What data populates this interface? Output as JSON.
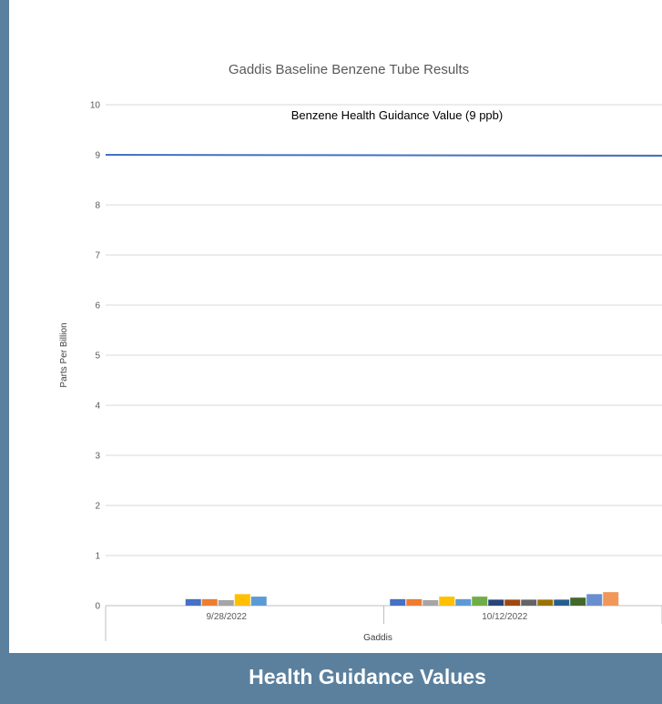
{
  "chart_data": {
    "type": "bar",
    "title": "Gaddis Baseline Benzene Tube Results",
    "xlabel": "Gaddis",
    "ylabel": "Parts Per Billion",
    "ylim": [
      0,
      10
    ],
    "yticks": [
      0,
      1,
      2,
      3,
      4,
      5,
      6,
      7,
      8,
      9,
      10
    ],
    "grid": true,
    "legend": "none",
    "groups": [
      {
        "label": "9/28/2022",
        "values": [
          0.13,
          0.13,
          0.11,
          0.23,
          0.18
        ],
        "colors": [
          "#4472c4",
          "#ed7d31",
          "#a5a5a5",
          "#ffc000",
          "#5b9bd5"
        ]
      },
      {
        "label": "10/12/2022",
        "values": [
          0.13,
          0.13,
          0.11,
          0.18,
          0.13,
          0.18,
          0.12,
          0.12,
          0.12,
          0.12,
          0.12,
          0.16,
          0.23,
          0.27
        ],
        "colors": [
          "#4472c4",
          "#ed7d31",
          "#a5a5a5",
          "#ffc000",
          "#5b9bd5",
          "#70ad47",
          "#264478",
          "#9e480e",
          "#636363",
          "#997300",
          "#255e91",
          "#43682b",
          "#698ed0",
          "#f1975a"
        ]
      }
    ],
    "reference_line": {
      "value": 9,
      "label": "Benzene Health Guidance Value (9 ppb)",
      "color": "#4472c4"
    }
  },
  "caption": "Health Guidance Values"
}
